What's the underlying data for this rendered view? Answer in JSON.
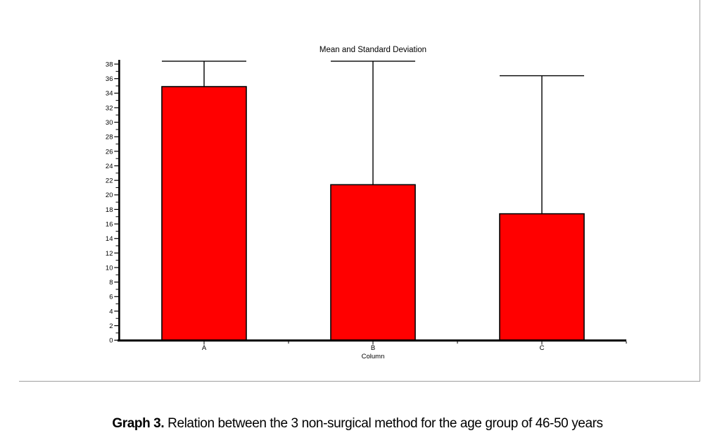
{
  "chart_data": {
    "type": "bar",
    "title": "Mean and Standard Deviation",
    "xlabel": "Column",
    "ylabel": "",
    "categories": [
      "A",
      "B",
      "C"
    ],
    "values": [
      34.9,
      21.4,
      17.4
    ],
    "error_upper": [
      38.4,
      38.4,
      36.4
    ],
    "ylim": [
      0,
      38
    ],
    "ytick_step": 2,
    "yticks": [
      0,
      2,
      4,
      6,
      8,
      10,
      12,
      14,
      16,
      18,
      20,
      22,
      24,
      26,
      28,
      30,
      32,
      34,
      36,
      38
    ],
    "grid": false,
    "legend": null,
    "bar_color": "#ff0000",
    "bar_border_color": "#000000",
    "axis_color": "#000000",
    "error_bar_style": "upper-only vertical line with cap equal to bar width"
  },
  "figure_caption": {
    "label": "Graph 3.",
    "text": "Relation between the 3 non-surgical method  for the age group of 46-50  years"
  },
  "frame": {
    "border_color": "#9e9e9e",
    "sides": "right and bottom"
  }
}
